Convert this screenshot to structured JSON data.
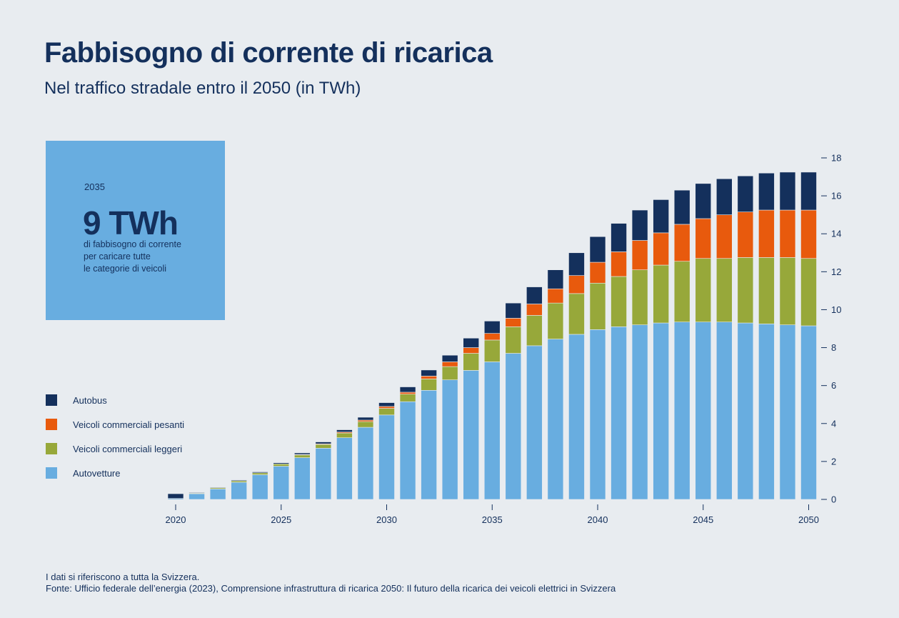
{
  "title": "Fabbisogno di corrente di ricarica",
  "subtitle": "Nel traffico stradale entro il 2050 (in TWh)",
  "callout": {
    "year": "2035",
    "value": "9 TWh",
    "text_lines": [
      "di fabbisogno di corrente",
      "per caricare tutte",
      "le categorie di veicoli"
    ]
  },
  "legend": [
    {
      "label": "Autobus",
      "color": "#14305c"
    },
    {
      "label": "Veicoli commerciali pesanti",
      "color": "#e85a0d"
    },
    {
      "label": "Veicoli commerciali leggeri",
      "color": "#97a83a"
    },
    {
      "label": "Autovetture",
      "color": "#68ade0"
    }
  ],
  "footnote": {
    "line1": "I dati si riferiscono a tutta la Svizzera.",
    "line2": "Fonte: Ufficio federale dell’energia (2023), Comprensione infrastruttura di ricarica 2050: Il futuro della ricarica dei veicoli elettrici in Svizzera"
  },
  "chart_data": {
    "type": "bar",
    "stacked": true,
    "categories": [
      2020,
      2021,
      2022,
      2023,
      2024,
      2025,
      2026,
      2027,
      2028,
      2029,
      2030,
      2031,
      2032,
      2033,
      2034,
      2035,
      2036,
      2037,
      2038,
      2039,
      2040,
      2041,
      2042,
      2043,
      2044,
      2045,
      2046,
      2047,
      2048,
      2049,
      2050
    ],
    "x_tick_labels": [
      "2020",
      "2025",
      "2030",
      "2035",
      "2040",
      "2045",
      "2050"
    ],
    "y_tick_labels": [
      "0",
      "2",
      "4",
      "6",
      "8",
      "10",
      "12",
      "14",
      "16",
      "18"
    ],
    "ylim": [
      0,
      18
    ],
    "y_axis_side": "right",
    "series": [
      {
        "name": "Autovetture",
        "color": "#68ade0",
        "values": [
          0.05,
          0.3,
          0.55,
          0.9,
          1.3,
          1.75,
          2.2,
          2.7,
          3.25,
          3.8,
          4.45,
          5.15,
          5.75,
          6.3,
          6.8,
          7.25,
          7.7,
          8.1,
          8.45,
          8.7,
          8.95,
          9.1,
          9.2,
          9.3,
          9.35,
          9.35,
          9.35,
          9.3,
          9.25,
          9.2,
          9.15
        ]
      },
      {
        "name": "Veicoli commerciali leggeri",
        "color": "#97a83a",
        "values": [
          0.0,
          0.03,
          0.06,
          0.08,
          0.1,
          0.12,
          0.15,
          0.2,
          0.25,
          0.3,
          0.35,
          0.4,
          0.6,
          0.7,
          0.9,
          1.15,
          1.4,
          1.6,
          1.9,
          2.15,
          2.45,
          2.65,
          2.9,
          3.05,
          3.2,
          3.35,
          3.35,
          3.45,
          3.5,
          3.55,
          3.55
        ]
      },
      {
        "name": "Veicoli commerciali pesanti",
        "color": "#e85a0d",
        "values": [
          0.0,
          0.0,
          0.0,
          0.0,
          0.0,
          0.0,
          0.02,
          0.03,
          0.05,
          0.08,
          0.1,
          0.1,
          0.15,
          0.25,
          0.3,
          0.35,
          0.45,
          0.6,
          0.75,
          0.95,
          1.1,
          1.3,
          1.55,
          1.7,
          1.95,
          2.1,
          2.3,
          2.4,
          2.5,
          2.5,
          2.55
        ]
      },
      {
        "name": "Autobus",
        "color": "#14305c",
        "values": [
          0.25,
          0.03,
          0.03,
          0.04,
          0.05,
          0.06,
          0.08,
          0.1,
          0.12,
          0.15,
          0.2,
          0.28,
          0.32,
          0.35,
          0.5,
          0.65,
          0.8,
          0.9,
          1.0,
          1.2,
          1.35,
          1.5,
          1.6,
          1.75,
          1.8,
          1.85,
          1.9,
          1.9,
          1.95,
          2.0,
          2.0
        ]
      }
    ]
  }
}
